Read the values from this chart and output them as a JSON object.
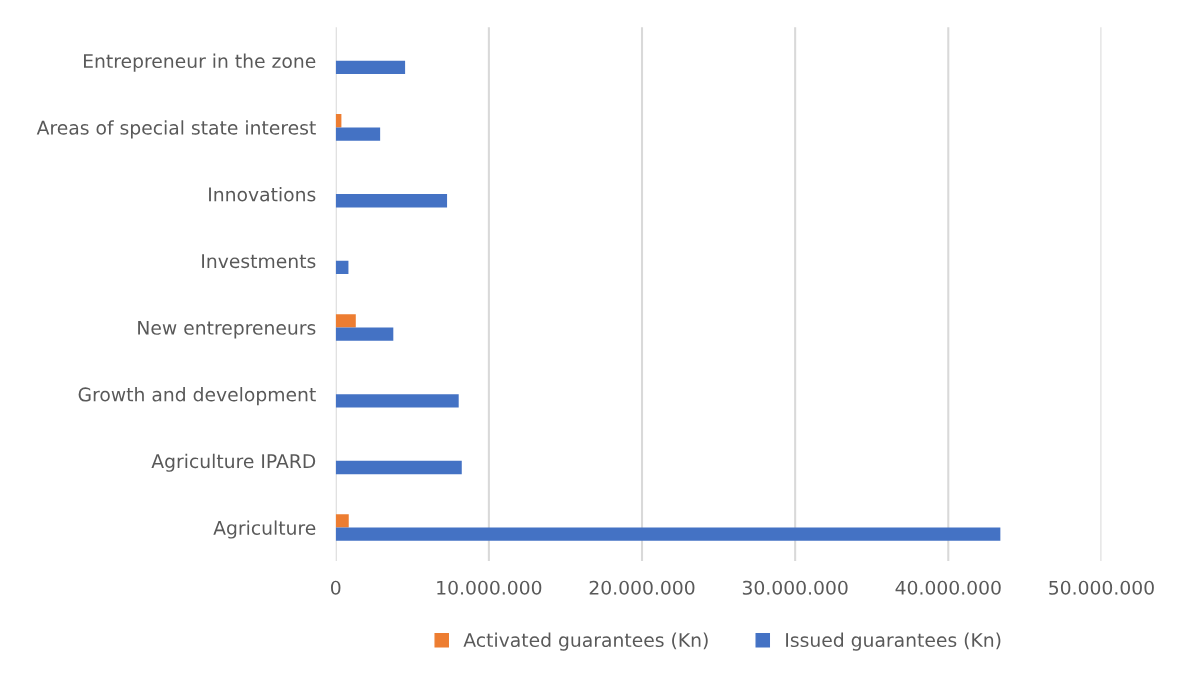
{
  "chart_data": {
    "type": "bar",
    "orientation": "horizontal",
    "categories": [
      "Entrepreneur in the zone",
      "Areas of special state interest",
      "Innovations",
      "Investments",
      "New entrepreneurs",
      "Growth and development",
      "Agriculture IPARD",
      "Agriculture"
    ],
    "series": [
      {
        "name": "Activated guarantees (Kn)",
        "color": "#ed7d31",
        "values": [
          null,
          370000,
          null,
          null,
          1310000,
          null,
          null,
          850000
        ]
      },
      {
        "name": "Issued guarantees (Kn)",
        "color": "#4472c4",
        "values": [
          4530000,
          2900000,
          7270000,
          830000,
          3760000,
          8030000,
          8230000,
          43400000
        ]
      }
    ],
    "xlim": [
      0,
      50000000
    ],
    "xticks": [
      0,
      {
        "value": 10000000,
        "label": "10.000.000"
      },
      {
        "value": 20000000,
        "label": "20.000.000"
      },
      {
        "value": 30000000,
        "label": "30.000.000"
      },
      {
        "value": 40000000,
        "label": "40.000.000"
      },
      {
        "value": 50000000,
        "label": "50.000.000"
      }
    ],
    "grid": "x",
    "legend": "bottom"
  }
}
